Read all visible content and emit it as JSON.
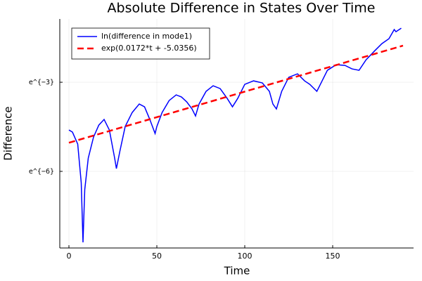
{
  "chart_data": {
    "type": "line",
    "title": "Absolute Difference in States Over Time",
    "xlabel": "Time",
    "ylabel": "Difference",
    "xlim": [
      -5.2,
      196
    ],
    "xticks": [
      0,
      50,
      100,
      150
    ],
    "ylim": [
      0.000188,
      0.419
    ],
    "log_scale": true,
    "yticks": [
      {
        "value": 0.049787,
        "label": "e^{−3}"
      },
      {
        "value": 0.0024788,
        "label": "e^{−6}"
      }
    ],
    "grid": true,
    "legend": "top-left",
    "series": [
      {
        "name": "ln(difference in mode1)",
        "color": "#0000ff",
        "dash": "solid",
        "x": [
          0,
          2,
          5,
          7,
          8,
          9,
          11,
          14,
          17,
          20,
          23,
          26,
          27,
          29,
          32,
          36,
          40,
          43,
          46,
          49,
          50,
          53,
          57,
          61,
          64,
          67,
          70,
          72,
          74,
          78,
          82,
          86,
          90,
          93,
          96,
          100,
          105,
          110,
          114,
          116,
          118,
          121,
          125,
          130,
          134,
          137,
          141,
          143,
          147,
          152,
          157,
          161,
          165,
          169,
          174,
          178,
          182,
          185,
          186,
          189
        ],
        "values": [
          0.00997,
          0.0093,
          0.00622,
          0.00169,
          0.000227,
          0.00134,
          0.00388,
          0.00787,
          0.01177,
          0.01423,
          0.00997,
          0.00388,
          0.00272,
          0.00491,
          0.01123,
          0.018,
          0.02392,
          0.02177,
          0.01423,
          0.00886,
          0.01123,
          0.018,
          0.02691,
          0.03251,
          0.03031,
          0.02569,
          0.02029,
          0.01601,
          0.02392,
          0.03664,
          0.04424,
          0.04024,
          0.0289,
          0.02177,
          0.0289,
          0.04638,
          0.05218,
          0.04862,
          0.03664,
          0.02392,
          0.02029,
          0.03664,
          0.05872,
          0.06612,
          0.05218,
          0.04638,
          0.03664,
          0.04638,
          0.07443,
          0.08992,
          0.08779,
          0.078,
          0.07443,
          0.1061,
          0.1443,
          0.1827,
          0.2156,
          0.2932,
          0.2731,
          0.3073
        ]
      },
      {
        "name": "exp(0.0172*t + -5.0356)",
        "color": "#ff0000",
        "dash": "dashed",
        "x": [
          0,
          190
        ],
        "values": [
          0.0065,
          0.1707
        ]
      }
    ]
  }
}
